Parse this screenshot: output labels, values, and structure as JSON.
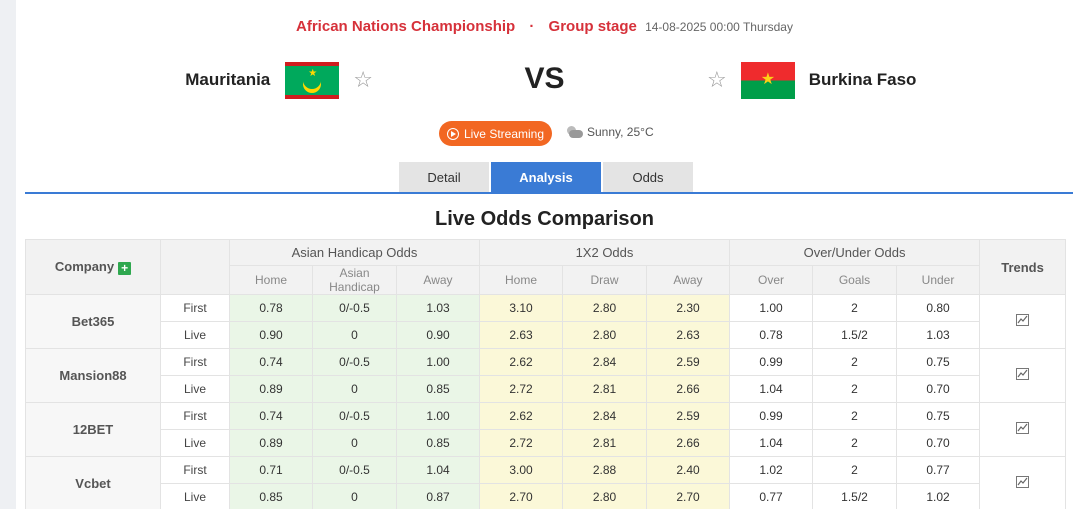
{
  "match": {
    "competition": "African Nations Championship",
    "stage": "Group stage",
    "datetime": "14-08-2025 00:00 Thursday",
    "home_team": "Mauritania",
    "away_team": "Burkina Faso",
    "vs_label": "VS",
    "live_label": "Live Streaming",
    "weather": "Sunny, 25°C"
  },
  "tabs": [
    {
      "label": "Detail",
      "active": false
    },
    {
      "label": "Analysis",
      "active": true
    },
    {
      "label": "Odds",
      "active": false
    }
  ],
  "section_title": "Live Odds Comparison",
  "table": {
    "headers": {
      "company": "Company",
      "asian": "Asian Handicap Odds",
      "x12": "1X2 Odds",
      "ou": "Over/Under Odds",
      "trends": "Trends",
      "asian_sub": [
        "Home",
        "Asian Handicap",
        "Away"
      ],
      "x12_sub": [
        "Home",
        "Draw",
        "Away"
      ],
      "ou_sub": [
        "Over",
        "Goals",
        "Under"
      ]
    },
    "companies": [
      {
        "name": "Bet365",
        "rows": [
          {
            "type": "First",
            "ah": [
              "0.78",
              "0/-0.5",
              "1.03"
            ],
            "x12": [
              "3.10",
              "2.80",
              "2.30"
            ],
            "ou": [
              "1.00",
              "2",
              "0.80"
            ]
          },
          {
            "type": "Live",
            "ah": [
              "0.90",
              "0",
              "0.90"
            ],
            "x12": [
              "2.63",
              "2.80",
              "2.63"
            ],
            "ou": [
              "0.78",
              "1.5/2",
              "1.03"
            ]
          }
        ]
      },
      {
        "name": "Mansion88",
        "rows": [
          {
            "type": "First",
            "ah": [
              "0.74",
              "0/-0.5",
              "1.00"
            ],
            "x12": [
              "2.62",
              "2.84",
              "2.59"
            ],
            "ou": [
              "0.99",
              "2",
              "0.75"
            ]
          },
          {
            "type": "Live",
            "ah": [
              "0.89",
              "0",
              "0.85"
            ],
            "x12": [
              "2.72",
              "2.81",
              "2.66"
            ],
            "ou": [
              "1.04",
              "2",
              "0.70"
            ]
          }
        ]
      },
      {
        "name": "12BET",
        "rows": [
          {
            "type": "First",
            "ah": [
              "0.74",
              "0/-0.5",
              "1.00"
            ],
            "x12": [
              "2.62",
              "2.84",
              "2.59"
            ],
            "ou": [
              "0.99",
              "2",
              "0.75"
            ]
          },
          {
            "type": "Live",
            "ah": [
              "0.89",
              "0",
              "0.85"
            ],
            "x12": [
              "2.72",
              "2.81",
              "2.66"
            ],
            "ou": [
              "1.04",
              "2",
              "0.70"
            ]
          }
        ]
      },
      {
        "name": "Vcbet",
        "rows": [
          {
            "type": "First",
            "ah": [
              "0.71",
              "0/-0.5",
              "1.04"
            ],
            "x12": [
              "3.00",
              "2.88",
              "2.40"
            ],
            "ou": [
              "1.02",
              "2",
              "0.77"
            ]
          },
          {
            "type": "Live",
            "ah": [
              "0.85",
              "0",
              "0.87"
            ],
            "x12": [
              "2.70",
              "2.80",
              "2.70"
            ],
            "ou": [
              "0.77",
              "1.5/2",
              "1.02"
            ]
          }
        ]
      }
    ]
  },
  "icons": {
    "plus": "plus-icon",
    "trend": "trend-chart-icon",
    "star": "star-outline-icon",
    "play": "play-circle-icon",
    "weather": "partly-cloudy-icon"
  },
  "colors": {
    "accent": "#3a7bd5",
    "title_red": "#d6313a",
    "live_orange": "#f26722",
    "ah_bg": "#eaf6e7",
    "x12_bg": "#fbf8d8"
  }
}
